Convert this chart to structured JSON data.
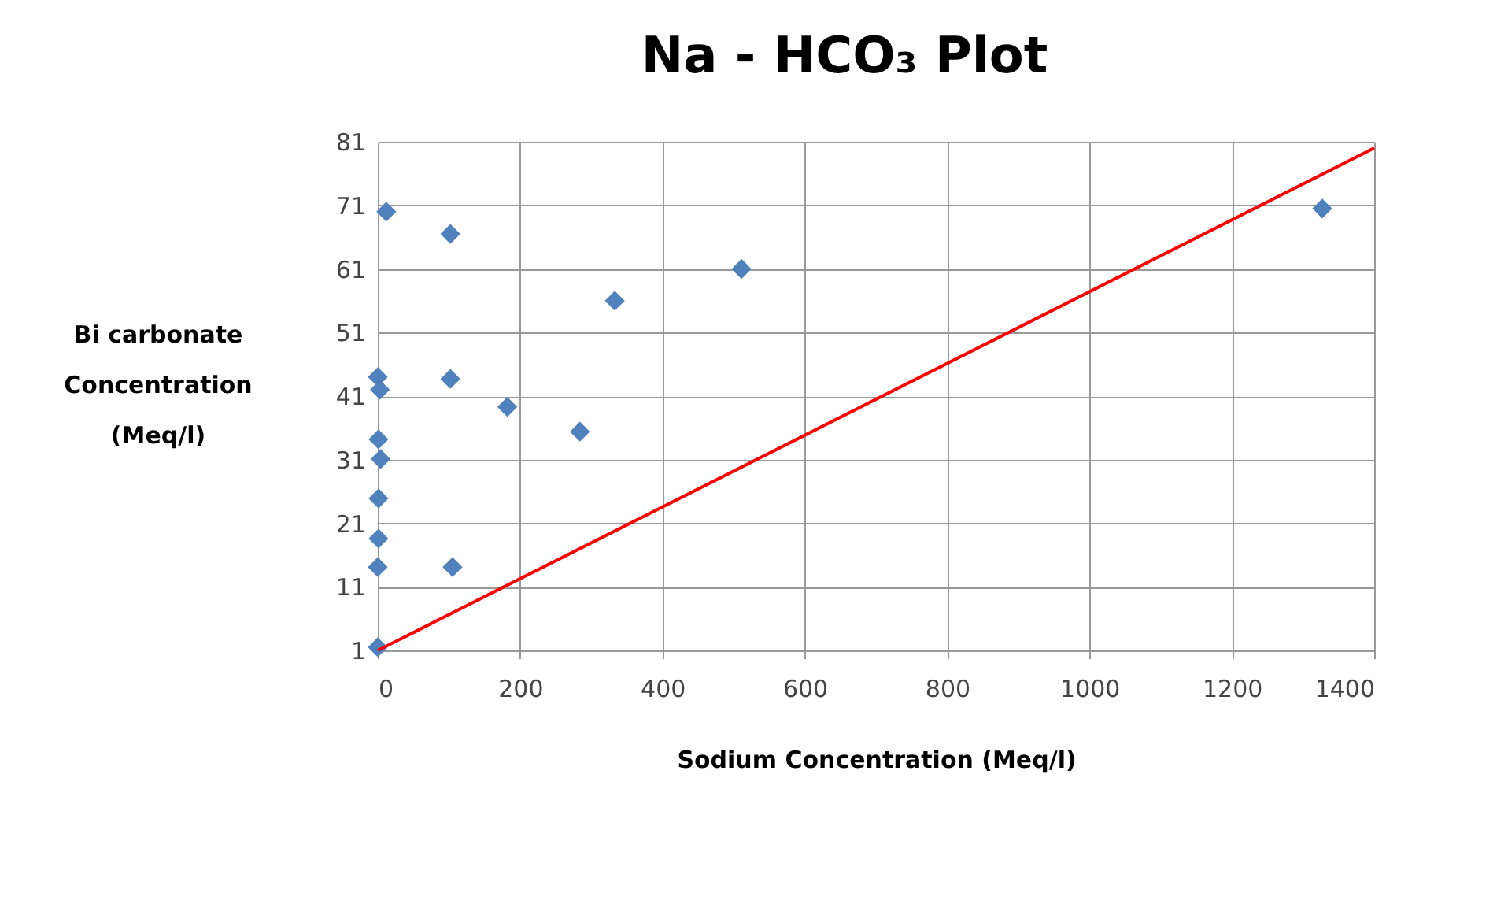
{
  "chart_data": {
    "type": "scatter",
    "title": "Na - HCO₃ Plot",
    "xlabel": "Sodium Concentration (Meq/l)",
    "ylabel": "Bi carbonate Concentration (Meq/l)",
    "xlim": [
      0,
      1400
    ],
    "xticks": [
      0,
      200,
      400,
      600,
      800,
      1000,
      1200,
      1400
    ],
    "ylim": [
      1,
      81
    ],
    "yticks": [
      1,
      11,
      21,
      31,
      41,
      51,
      61,
      71,
      81
    ],
    "grid": true,
    "marker": "diamond",
    "series": [
      {
        "color": "#4f81bd",
        "x": [
          12,
          102,
          511,
          333,
          0,
          3,
          102,
          182,
          284,
          1,
          4,
          1,
          1,
          0,
          105,
          0,
          1327
        ],
        "values": [
          70,
          66.5,
          61,
          56,
          44,
          42,
          43.7,
          39.3,
          35.4,
          34.2,
          31.1,
          24.9,
          18.6,
          14.1,
          14.1,
          1.5,
          70.5
        ]
      },
      {
        "type": "line",
        "color": "#ff0000",
        "x": [
          0,
          1400
        ],
        "values": [
          1,
          80
        ],
        "marker": "none",
        "line_style": "solid"
      }
    ]
  }
}
